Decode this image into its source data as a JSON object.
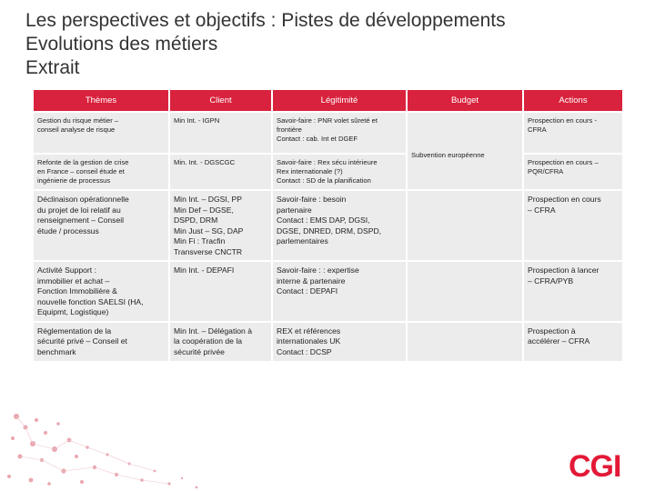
{
  "title": {
    "line1": "Les perspectives et objectifs : Pistes de développements",
    "line2": "Evolutions des métiers",
    "line3": "Extrait"
  },
  "table": {
    "headers": [
      "Thèmes",
      "Client",
      "Légitimité",
      "Budget",
      "Actions"
    ],
    "rows": [
      {
        "theme": "Gestion du risque métier –\nconseil analyse de risque",
        "client": "Min Int. - IGPN",
        "legitimite": "Savoir-faire : PNR volet sûreté et\nfrontière\nContact : cab. Int et DGEF",
        "actions": "Prospection en cours -\nCFRA"
      },
      {
        "theme": "Refonte de la gestion de crise\nen France – conseil étude et\ningénierie de processus",
        "client": "Min. Int. - DGSCGC",
        "legitimite": "Savoir-faire : Rex sécu intérieure\nRex internationale (?)\nContact : SD de la planification",
        "actions": "Prospection en cours –\nPQR/CFRA"
      },
      {
        "theme": "Déclinaison opérationnelle\ndu projet de loi relatif au\nrenseignement – Conseil\nétude / processus",
        "client": "Min Int. – DGSI, PP\nMin Def – DGSE,\nDSPD, DRM\nMin Just – SG, DAP\nMin Fi : Tracfin\nTransverse CNCTR",
        "legitimite": "Savoir-faire : besoin\npartenaire\nContact : EMS DAP, DGSI,\nDGSE, DNRED, DRM, DSPD,\nparlementaires",
        "actions": "Prospection en cours\n– CFRA"
      },
      {
        "theme": "Activité Support :\nimmobilier et achat –\nFonction Immobilière &\nnouvelle fonction SAELSI (HA,\nEquipmt, Logistique)",
        "client": "Min Int. - DEPAFI",
        "legitimite": "Savoir-faire : : expertise\ninterne & partenaire\nContact : DEPAFI",
        "actions": "Prospection à lancer\n– CFRA/PYB"
      },
      {
        "theme": "Réglementation de la\nsécurité privé – Conseil et\nbenchmark",
        "client": "Min Int. – Délégation à\nla coopération de la\nsécurité privée",
        "legitimite": "REX et références\ninternationales UK\nContact : DCSP",
        "actions": "Prospection à\naccélérer – CFRA"
      }
    ],
    "budget_merged": "Subvention européenne"
  },
  "logo_text": "CGI",
  "colors": {
    "header": "#d9223d",
    "cell": "#ececec",
    "logo": "#e31937"
  }
}
